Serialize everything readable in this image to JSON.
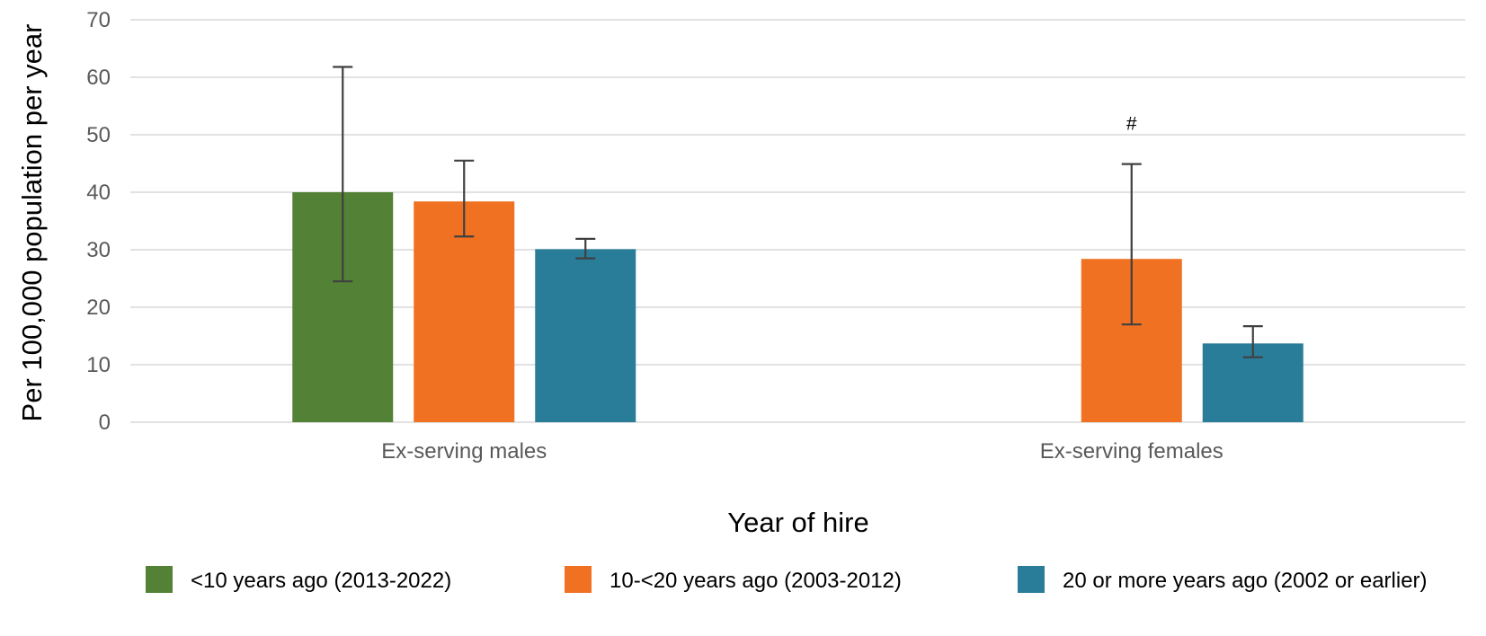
{
  "chart_data": {
    "type": "bar",
    "title": "",
    "xlabel": "Year of hire",
    "ylabel": "Per 100,000 population per year",
    "ylim": [
      0,
      70
    ],
    "yticks": [
      0,
      10,
      20,
      30,
      40,
      50,
      60,
      70
    ],
    "grid": true,
    "legend_position": "bottom",
    "categories": [
      "Ex-serving males",
      "Ex-serving females"
    ],
    "series": [
      {
        "name": "<10 years ago (2013-2022)",
        "color": "#538135",
        "values": [
          40,
          null
        ],
        "ci_low": [
          24.5,
          null
        ],
        "ci_high": [
          61.8,
          null
        ]
      },
      {
        "name": "10-<20 years ago (2003-2012)",
        "color": "#F07122",
        "values": [
          38.4,
          28.4
        ],
        "ci_low": [
          32.3,
          17.0
        ],
        "ci_high": [
          45.5,
          44.9
        ]
      },
      {
        "name": "20 or more years ago (2002 or earlier)",
        "color": "#2A7D99",
        "values": [
          30.1,
          13.7
        ],
        "ci_low": [
          28.5,
          11.3
        ],
        "ci_high": [
          31.9,
          16.7
        ]
      }
    ],
    "annotations": [
      {
        "category": "Ex-serving females",
        "series": "10-<20 years ago (2003-2012)",
        "text": "#"
      }
    ]
  }
}
